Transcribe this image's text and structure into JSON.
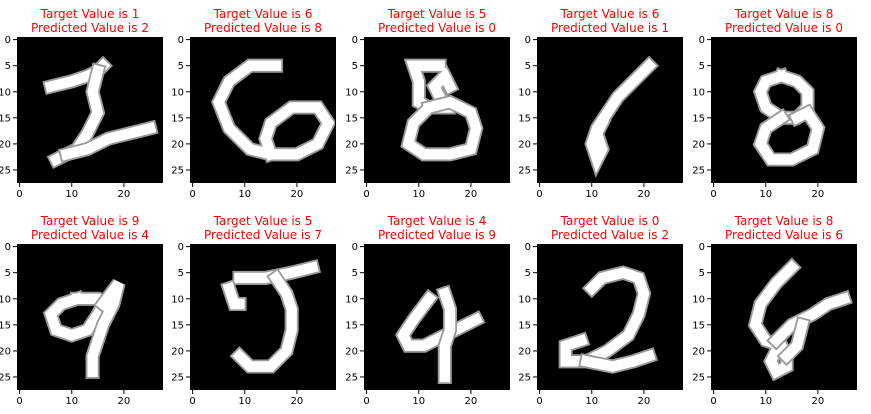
{
  "figure": {
    "colors": {
      "title": "#ff0000",
      "image_bg": "#000000",
      "ink": "#ffffff",
      "axis": "#000000"
    },
    "xticks": [
      "0",
      "10",
      "20"
    ],
    "yticks": [
      "0",
      "5",
      "10",
      "15",
      "20",
      "25"
    ],
    "panels": [
      {
        "title1": "Target Value is 1",
        "title2": "Predicted Value is 2",
        "digit": "1"
      },
      {
        "title1": "Target Value is 6",
        "title2": "Predicted Value is 8",
        "digit": "6"
      },
      {
        "title1": "Target Value is 5",
        "title2": "Predicted Value is 0",
        "digit": "5"
      },
      {
        "title1": "Target Value is 6",
        "title2": "Predicted Value is 1",
        "digit": "6"
      },
      {
        "title1": "Target Value is 8",
        "title2": "Predicted Value is 0",
        "digit": "8"
      },
      {
        "title1": "Target Value is 9",
        "title2": "Predicted Value is 4",
        "digit": "9"
      },
      {
        "title1": "Target Value is 5",
        "title2": "Predicted Value is 7",
        "digit": "5"
      },
      {
        "title1": "Target Value is 4",
        "title2": "Predicted Value is 9",
        "digit": "4"
      },
      {
        "title1": "Target Value is 0",
        "title2": "Predicted Value is 2",
        "digit": "0"
      },
      {
        "title1": "Target Value is 8",
        "title2": "Predicted Value is 6",
        "digit": "8"
      }
    ]
  }
}
